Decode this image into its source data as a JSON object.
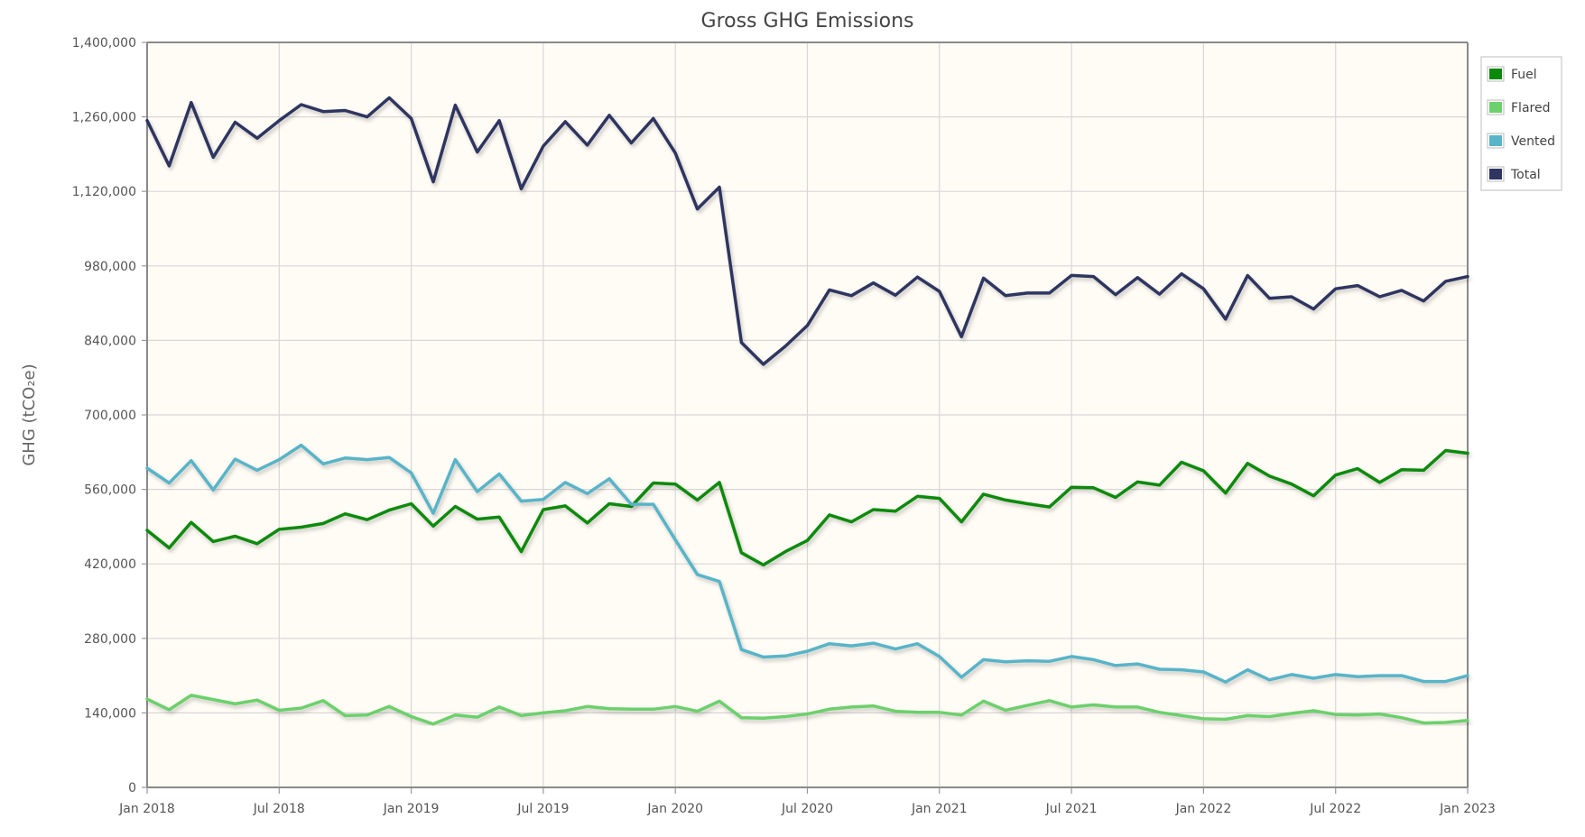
{
  "chart_data": {
    "type": "line",
    "title": "Gross GHG Emissions",
    "xlabel": "",
    "ylabel": "GHG (tCO₂e)",
    "ylim": [
      0,
      1400000
    ],
    "yticks": [
      0,
      140000,
      280000,
      420000,
      560000,
      700000,
      840000,
      980000,
      1120000,
      1260000,
      1400000
    ],
    "ytick_labels": [
      "0",
      "140,000",
      "280,000",
      "420,000",
      "560,000",
      "700,000",
      "840,000",
      "980,000",
      "1,120,000",
      "1,260,000",
      "1,400,000"
    ],
    "xticks": [
      {
        "index": 0,
        "label": "Jan 2018"
      },
      {
        "index": 6,
        "label": "Jul 2018"
      },
      {
        "index": 12,
        "label": "Jan 2019"
      },
      {
        "index": 18,
        "label": "Jul 2019"
      },
      {
        "index": 24,
        "label": "Jan 2020"
      },
      {
        "index": 30,
        "label": "Jul 2020"
      },
      {
        "index": 36,
        "label": "Jan 2021"
      },
      {
        "index": 42,
        "label": "Jul 2021"
      },
      {
        "index": 48,
        "label": "Jan 2022"
      },
      {
        "index": 54,
        "label": "Jul 2022"
      },
      {
        "index": 60,
        "label": "Jan 2023"
      }
    ],
    "x": [
      "Jan 2018",
      "Feb 2018",
      "Mar 2018",
      "Apr 2018",
      "May 2018",
      "Jun 2018",
      "Jul 2018",
      "Aug 2018",
      "Sep 2018",
      "Oct 2018",
      "Nov 2018",
      "Dec 2018",
      "Jan 2019",
      "Feb 2019",
      "Mar 2019",
      "Apr 2019",
      "May 2019",
      "Jun 2019",
      "Jul 2019",
      "Aug 2019",
      "Sep 2019",
      "Oct 2019",
      "Nov 2019",
      "Dec 2019",
      "Jan 2020",
      "Feb 2020",
      "Mar 2020",
      "Apr 2020",
      "May 2020",
      "Jun 2020",
      "Jul 2020",
      "Aug 2020",
      "Sep 2020",
      "Oct 2020",
      "Nov 2020",
      "Dec 2020",
      "Jan 2021",
      "Feb 2021",
      "Mar 2021",
      "Apr 2021",
      "May 2021",
      "Jun 2021",
      "Jul 2021",
      "Aug 2021",
      "Sep 2021",
      "Oct 2021",
      "Nov 2021",
      "Dec 2021",
      "Jan 2022",
      "Feb 2022",
      "Mar 2022",
      "Apr 2022",
      "May 2022",
      "Jun 2022",
      "Jul 2022",
      "Aug 2022",
      "Sep 2022",
      "Oct 2022",
      "Nov 2022",
      "Dec 2022",
      "Jan 2023"
    ],
    "grid": true,
    "legend_position": "right",
    "series": [
      {
        "name": "Fuel",
        "color": "#0a8a0a",
        "values": [
          483000,
          450000,
          498000,
          462000,
          472000,
          458000,
          485000,
          489000,
          496000,
          514000,
          503000,
          521000,
          533000,
          491000,
          528000,
          504000,
          508000,
          443000,
          522000,
          529000,
          497000,
          533000,
          528000,
          572000,
          570000,
          540000,
          573000,
          441000,
          418000,
          443000,
          464000,
          512000,
          499000,
          522000,
          519000,
          547000,
          543000,
          499000,
          551000,
          540000,
          533000,
          527000,
          564000,
          563000,
          545000,
          574000,
          568000,
          611000,
          595000,
          553000,
          609000,
          585000,
          570000,
          548000,
          587000,
          599000,
          573000,
          597000,
          596000,
          633000,
          628000
        ]
      },
      {
        "name": "Flared",
        "color": "#6cd06c",
        "values": [
          166000,
          146000,
          173000,
          165000,
          157000,
          164000,
          145000,
          149000,
          163000,
          135000,
          136000,
          152000,
          133000,
          119000,
          136000,
          132000,
          151000,
          135000,
          140000,
          144000,
          152000,
          148000,
          147000,
          147000,
          152000,
          143000,
          162000,
          131000,
          130000,
          133000,
          138000,
          147000,
          151000,
          153000,
          143000,
          141000,
          141000,
          136000,
          162000,
          145000,
          154000,
          163000,
          151000,
          155000,
          151000,
          151000,
          141000,
          135000,
          129000,
          128000,
          135000,
          133000,
          139000,
          144000,
          137000,
          136000,
          138000,
          131000,
          121000,
          122000,
          126000
        ]
      },
      {
        "name": "Vented",
        "color": "#58b4c8",
        "values": [
          600000,
          572000,
          614000,
          559000,
          617000,
          596000,
          616000,
          643000,
          608000,
          619000,
          616000,
          620000,
          591000,
          515000,
          616000,
          556000,
          589000,
          538000,
          541000,
          573000,
          552000,
          580000,
          532000,
          532000,
          465000,
          400000,
          387000,
          259000,
          245000,
          247000,
          256000,
          270000,
          266000,
          271000,
          260000,
          270000,
          246000,
          207000,
          240000,
          236000,
          238000,
          237000,
          246000,
          240000,
          229000,
          232000,
          222000,
          221000,
          217000,
          198000,
          221000,
          202000,
          212000,
          205000,
          212000,
          208000,
          210000,
          210000,
          199000,
          199000,
          210000
        ]
      },
      {
        "name": "Total",
        "color": "#2d3561",
        "values": [
          1253000,
          1168000,
          1287000,
          1184000,
          1250000,
          1220000,
          1253000,
          1283000,
          1270000,
          1272000,
          1260000,
          1296000,
          1257000,
          1138000,
          1282000,
          1194000,
          1253000,
          1125000,
          1205000,
          1251000,
          1207000,
          1263000,
          1211000,
          1257000,
          1192000,
          1087000,
          1128000,
          836000,
          795000,
          829000,
          868000,
          935000,
          924000,
          948000,
          925000,
          959000,
          932000,
          847000,
          957000,
          924000,
          929000,
          929000,
          962000,
          960000,
          926000,
          958000,
          927000,
          965000,
          937000,
          880000,
          962000,
          919000,
          922000,
          899000,
          937000,
          943000,
          922000,
          934000,
          914000,
          951000,
          960000
        ]
      }
    ]
  }
}
